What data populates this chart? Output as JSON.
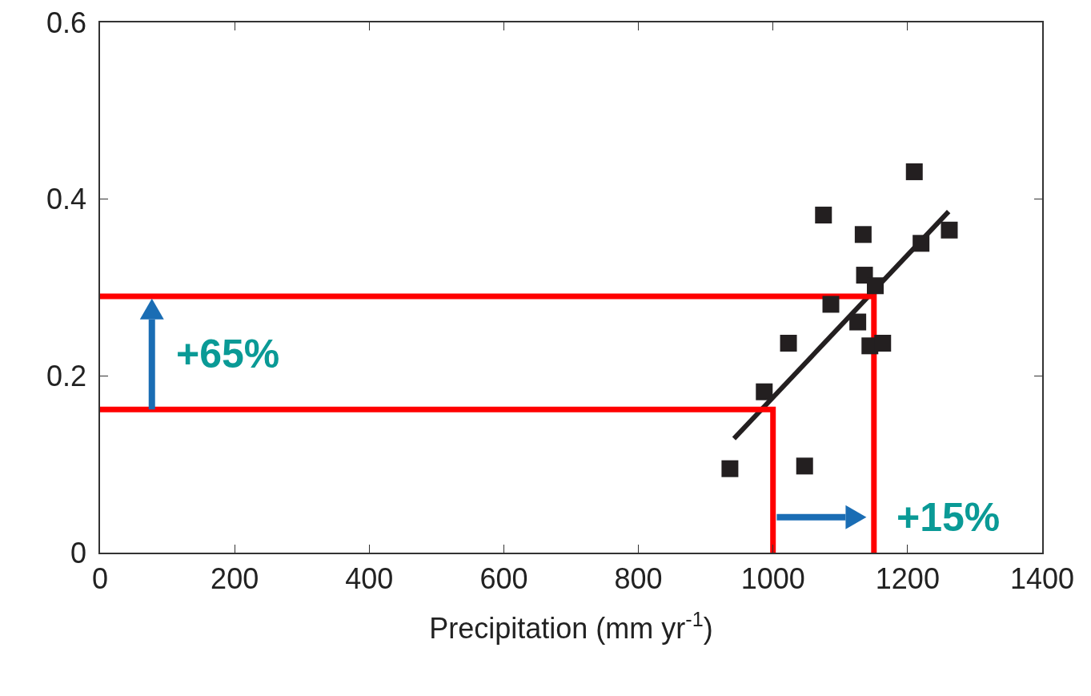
{
  "chart_data": {
    "type": "scatter",
    "xlabel": "Precipitation (mm yr$^{-1}$)",
    "xlim": [
      0,
      1400
    ],
    "xticks": [
      0,
      200,
      400,
      600,
      800,
      1000,
      1200,
      1400
    ],
    "ylim": [
      0,
      0.6
    ],
    "yticks": [
      0,
      {
        "value": 0.2,
        "label": "0.2"
      },
      {
        "value": 0.4,
        "label": "0.4"
      },
      {
        "value": 0.6,
        "label": "0.6"
      }
    ],
    "grid": false,
    "series": [
      {
        "marker": "square",
        "color": "#231f20",
        "x": [
          936,
          1047,
          987,
          1023,
          1075,
          1086,
          1134,
          1136,
          1126,
          1152,
          1144,
          1163,
          1210,
          1220,
          1262
        ],
        "values": [
          0.095,
          0.098,
          0.182,
          0.237,
          0.382,
          0.281,
          0.36,
          0.314,
          0.261,
          0.302,
          0.234,
          0.237,
          0.431,
          0.35,
          0.365
        ]
      },
      {
        "type": "line",
        "marker": "none",
        "color": "#231f20",
        "x": [
          942,
          1261
        ],
        "values": [
          0.129,
          0.386
        ]
      },
      {
        "type": "line",
        "marker": "none",
        "color": "#ff0000",
        "x": [
          0,
          1000,
          1000
        ],
        "values": [
          0.162,
          0.162,
          0
        ]
      },
      {
        "type": "line",
        "marker": "none",
        "color": "#ff0000",
        "x": [
          0,
          1150,
          1150
        ],
        "values": [
          0.29,
          0.29,
          0
        ]
      }
    ],
    "annotations": [
      "+65%",
      "+15%"
    ]
  }
}
